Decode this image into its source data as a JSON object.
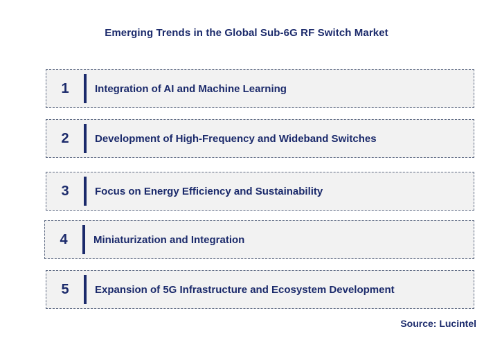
{
  "title": "Emerging Trends in the Global Sub-6G RF Switch Market",
  "trends": [
    {
      "number": "1",
      "label": "Integration of AI and Machine Learning"
    },
    {
      "number": "2",
      "label": "Development of High-Frequency and Wideband Switches"
    },
    {
      "number": "3",
      "label": "Focus on Energy Efficiency and Sustainability"
    },
    {
      "number": "4",
      "label": "Miniaturization and Integration"
    },
    {
      "number": "5",
      "label": "Expansion of 5G Infrastructure and Ecosystem Development"
    }
  ],
  "source": "Source: Lucintel",
  "colors": {
    "accent": "#1b2a6b",
    "row_background": "#f2f2f2",
    "row_border": "#5a6680"
  }
}
